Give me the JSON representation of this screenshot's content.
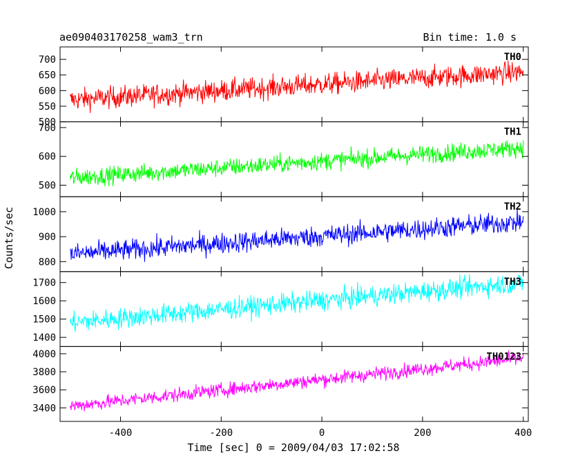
{
  "header": {
    "title": "ae090403170258_wam3_trn",
    "bin_time": "Bin time: 1.0 s"
  },
  "chart_data": {
    "type": "line",
    "xlabel": "Time [sec] 0 = 2009/04/03 17:02:58",
    "ylabel": "Counts/sec",
    "xlim": [
      -520,
      410
    ],
    "xticks": [
      -400,
      -200,
      0,
      200,
      400
    ],
    "panels": [
      {
        "name": "TH0",
        "color": "#ff0000",
        "ylim": [
          500,
          740
        ],
        "yticks": [
          500,
          550,
          600,
          650,
          700
        ],
        "start": 570,
        "end": 660,
        "noise": 25,
        "x_range": [
          -500,
          400
        ]
      },
      {
        "name": "TH1",
        "color": "#00ff00",
        "ylim": [
          460,
          720
        ],
        "yticks": [
          500,
          600,
          700
        ],
        "start": 525,
        "end": 630,
        "noise": 22,
        "x_range": [
          -500,
          400
        ]
      },
      {
        "name": "TH2",
        "color": "#0000ff",
        "ylim": [
          760,
          1060
        ],
        "yticks": [
          800,
          900,
          1000
        ],
        "start": 830,
        "end": 960,
        "noise": 30,
        "x_range": [
          -500,
          400
        ]
      },
      {
        "name": "TH3",
        "color": "#00ffff",
        "ylim": [
          1350,
          1760
        ],
        "yticks": [
          1400,
          1500,
          1600,
          1700
        ],
        "start": 1480,
        "end": 1700,
        "noise": 40,
        "x_range": [
          -500,
          400
        ]
      },
      {
        "name": "TH0123",
        "color": "#ff00ff",
        "ylim": [
          3250,
          4080
        ],
        "yticks": [
          3400,
          3600,
          3800,
          4000
        ],
        "start": 3420,
        "end": 3950,
        "noise": 55,
        "x_range": [
          -500,
          400
        ]
      }
    ]
  }
}
